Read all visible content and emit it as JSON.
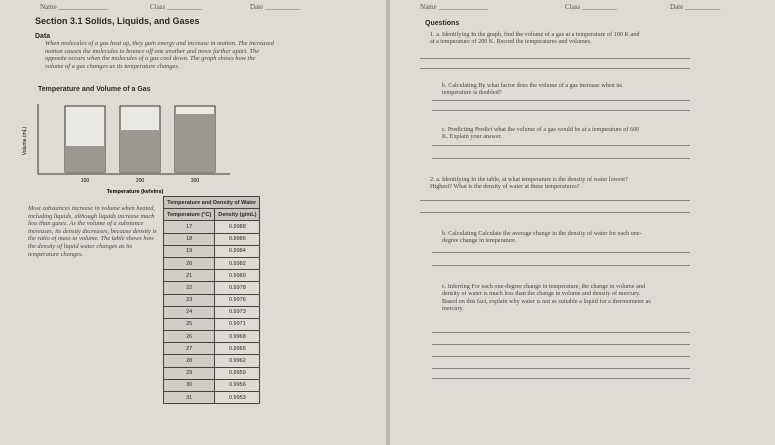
{
  "left_page": {
    "name_field": "Name ______________",
    "class_field": "Class __________",
    "date_field": "Date __________",
    "section_title": "Section 3.1 Solids, Liquids, and Gases",
    "data_heading": "Data",
    "paragraph_1": "When molecules of a gas heat up, they gain energy and increase in motion. The increased motion causes the molecules to bounce off one another and move farther apart. The opposite occurs when the molecules of a gas cool down. The graph shows how the volume of a gas changes as its temperature changes.",
    "graph": {
      "title": "Temperature and Volume of a Gas",
      "y_label": "Volume (mL)",
      "x_label": "Temperature (kelvins)",
      "x_ticks": [
        "100",
        "200",
        "300"
      ]
    },
    "paragraph_2": "Most substances increase in volume when heated, including liquids, although liquids increase much less than gases. As the volume of a substance increases, its density decreases, because density is the ratio of mass to volume. The table shows how the density of liquid water changes as its temperature changes.",
    "table": {
      "title": "Temperature and Density of Water",
      "columns": [
        "Temperature (°C)",
        "Density (g/mL)"
      ],
      "rows": [
        [
          "17",
          "0.9988"
        ],
        [
          "18",
          "0.9986"
        ],
        [
          "19",
          "0.9984"
        ],
        [
          "20",
          "0.9982"
        ],
        [
          "21",
          "0.9980"
        ],
        [
          "22",
          "0.9978"
        ],
        [
          "23",
          "0.9976"
        ],
        [
          "24",
          "0.9973"
        ],
        [
          "25",
          "0.9971"
        ],
        [
          "26",
          "0.9968"
        ],
        [
          "27",
          "0.9965"
        ],
        [
          "28",
          "0.9962"
        ],
        [
          "29",
          "0.9959"
        ],
        [
          "30",
          "0.9956"
        ],
        [
          "31",
          "0.9953"
        ]
      ]
    }
  },
  "right_page": {
    "name_field": "Name ______________",
    "class_field": "Class __________",
    "date_field": "Date __________",
    "heading": "Questions",
    "questions": [
      "1. a. Identifying  In the graph, find the volume of a gas at a temperature of 100 K and at a temperature of 200 K. Record the temperatures and volumes.",
      "b. Calculating  By what factor does the volume of a gas increase when its temperature is doubled?",
      "c. Predicting  Predict what the volume of a gas would be at a temperature of 600 K. Explain your answer.",
      "2. a. Identifying  In the table, at what temperature is the density of water lowest? Highest? What is the density of water at these temperatures?",
      "b. Calculating  Calculate the average change in the density of water for each one-degree change in temperature.",
      "c. Inferring  For each one-degree change in temperature, the change in volume and density of water is much less than the change in volume and density of mercury. Based on this fact, explain why water is not as suitable a liquid for a thermometer as mercury."
    ]
  }
}
